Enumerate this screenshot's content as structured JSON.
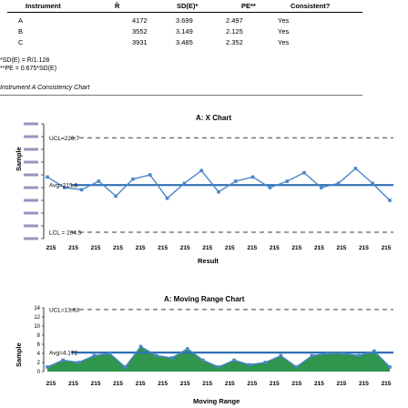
{
  "table": {
    "headers": [
      "Instrument",
      "R̄",
      "SD(E)*",
      "PE**",
      "Consistent?"
    ],
    "rows": [
      [
        "A",
        "4172",
        "3.699",
        "2.497",
        "Yes"
      ],
      [
        "B",
        "3552",
        "3.149",
        "2.125",
        "Yes"
      ],
      [
        "C",
        "3931",
        "3.485",
        "2.352",
        "Yes"
      ]
    ]
  },
  "formulas": {
    "sd": "*SD(E) = R̄/1.128",
    "pe": "**PE = 0.675*SD(E)"
  },
  "section_title": "Instrument A  Consistency Chart",
  "chart_data": [
    {
      "type": "line",
      "title": "A: X Chart",
      "xlabel": "Result",
      "ylabel": "Sample",
      "x_tick_label": "215",
      "x_tick_count": 16,
      "ucl_label": "UCL=226.7",
      "avg_label": "Avg=215.6",
      "lcl_label": "LCL = 204.5",
      "ucl": 226.7,
      "avg": 215.6,
      "lcl": 204.5,
      "ylim": [
        203,
        230
      ],
      "values": [
        217.5,
        215.0,
        214.5,
        216.5,
        213.0,
        217.0,
        218.0,
        212.5,
        216.0,
        219.0,
        214.0,
        216.5,
        217.5,
        215.0,
        216.5,
        218.5,
        215.0,
        216.0,
        219.5,
        216.0,
        212.0
      ],
      "colors": {
        "line": "#4a86c8",
        "avg": "#2f6fb5",
        "ucl": "#666666"
      }
    },
    {
      "type": "line",
      "title": "A: Moving Range Chart",
      "xlabel": "Moving Range",
      "ylabel": "Sample",
      "x_tick_label": "215",
      "x_tick_count": 16,
      "ucl_label": "UCL=13.63",
      "avg_label": "Avg=4.172",
      "ucl": 13.63,
      "avg": 4.172,
      "ylim": [
        0,
        14
      ],
      "y_ticks": [
        "0",
        "2",
        "4",
        "6",
        "8",
        "10",
        "12",
        "14"
      ],
      "values": [
        1.0,
        2.5,
        2.0,
        3.5,
        4.0,
        1.0,
        5.5,
        3.5,
        3.0,
        5.0,
        2.5,
        1.0,
        2.5,
        1.5,
        2.0,
        3.5,
        1.0,
        3.5,
        4.0,
        4.0,
        3.5,
        4.5,
        1.0
      ],
      "colors": {
        "line": "#4a86c8",
        "avg": "#2f6fb5",
        "ucl": "#666666",
        "fill": "#1a8a3a"
      }
    }
  ]
}
